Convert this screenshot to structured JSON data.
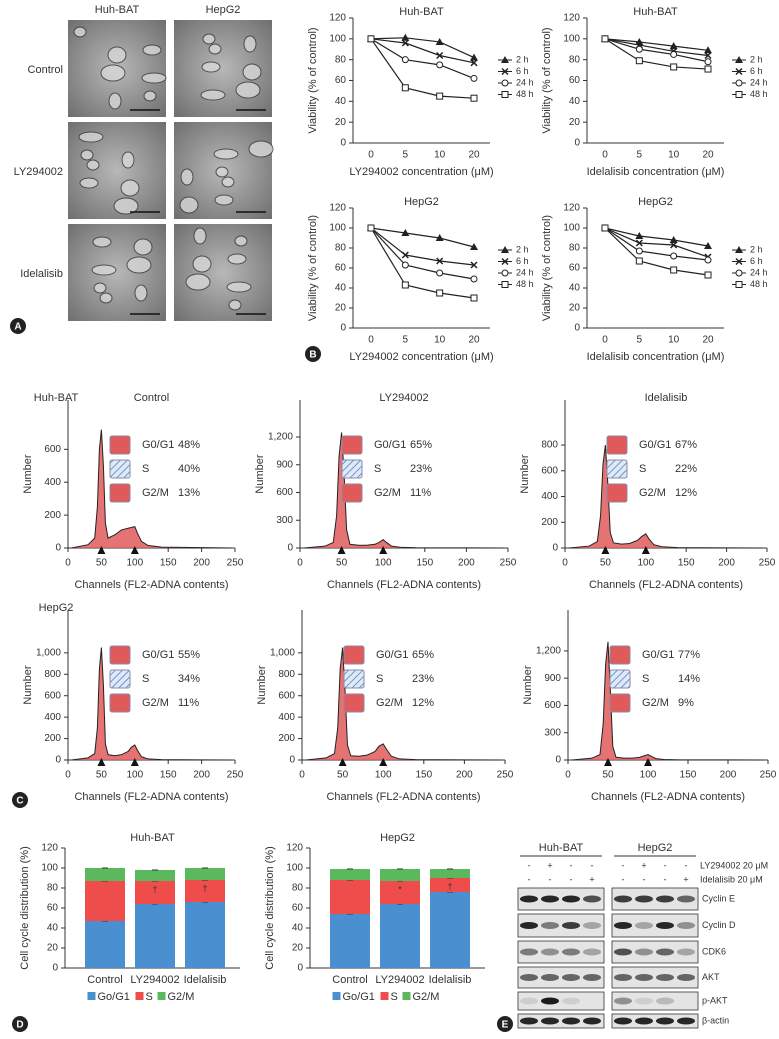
{
  "panel_labels": [
    "A",
    "B",
    "C",
    "D",
    "E"
  ],
  "micrographs": {
    "columns": [
      "Huh-BAT",
      "HepG2"
    ],
    "rows": [
      "Control",
      "LY294002",
      "Idelalisib"
    ]
  },
  "chart_data": [
    {
      "type": "line",
      "title": "Huh-BAT",
      "xlabel": "LY294002 concentration (μM)",
      "ylabel": "Viability (% of control)",
      "categories": [
        "0",
        "5",
        "10",
        "20"
      ],
      "ylim": [
        0,
        120
      ],
      "yticks": [
        0,
        20,
        40,
        60,
        80,
        100,
        120
      ],
      "series": [
        {
          "name": "2 h",
          "color": "#222222",
          "marker": "triangle",
          "values": [
            100,
            101,
            97,
            82
          ]
        },
        {
          "name": "6 h",
          "color": "#222222",
          "marker": "cross",
          "values": [
            100,
            96,
            84,
            77
          ]
        },
        {
          "name": "24 h",
          "color": "#222222",
          "marker": "circle",
          "values": [
            100,
            80,
            75,
            62
          ]
        },
        {
          "name": "48 h",
          "color": "#222222",
          "marker": "square",
          "values": [
            100,
            53,
            45,
            43
          ]
        }
      ]
    },
    {
      "type": "line",
      "title": "Huh-BAT",
      "xlabel": "Idelalisib concentration (μM)",
      "ylabel": "Viability (% of control)",
      "categories": [
        "0",
        "5",
        "10",
        "20"
      ],
      "ylim": [
        0,
        120
      ],
      "yticks": [
        0,
        20,
        40,
        60,
        80,
        100,
        120
      ],
      "series": [
        {
          "name": "2 h",
          "color": "#222222",
          "marker": "triangle",
          "values": [
            100,
            97,
            93,
            89
          ]
        },
        {
          "name": "6 h",
          "color": "#222222",
          "marker": "cross",
          "values": [
            100,
            94,
            88,
            84
          ]
        },
        {
          "name": "24 h",
          "color": "#222222",
          "marker": "circle",
          "values": [
            100,
            90,
            85,
            78
          ]
        },
        {
          "name": "48 h",
          "color": "#222222",
          "marker": "square",
          "values": [
            100,
            79,
            73,
            71
          ]
        }
      ]
    },
    {
      "type": "line",
      "title": "HepG2",
      "xlabel": "LY294002 concentration (μM)",
      "ylabel": "Viability (% of control)",
      "categories": [
        "0",
        "5",
        "10",
        "20"
      ],
      "ylim": [
        0,
        120
      ],
      "yticks": [
        0,
        20,
        40,
        60,
        80,
        100,
        120
      ],
      "series": [
        {
          "name": "2 h",
          "color": "#222222",
          "marker": "triangle",
          "values": [
            100,
            95,
            90,
            81
          ]
        },
        {
          "name": "6 h",
          "color": "#222222",
          "marker": "cross",
          "values": [
            100,
            73,
            67,
            63
          ]
        },
        {
          "name": "24 h",
          "color": "#222222",
          "marker": "circle",
          "values": [
            100,
            63,
            55,
            49
          ]
        },
        {
          "name": "48 h",
          "color": "#222222",
          "marker": "square",
          "values": [
            100,
            43,
            35,
            30
          ]
        }
      ]
    },
    {
      "type": "line",
      "title": "HepG2",
      "xlabel": "Idelalisib concentration (μM)",
      "ylabel": "Viability (% of control)",
      "categories": [
        "0",
        "5",
        "10",
        "20"
      ],
      "ylim": [
        0,
        120
      ],
      "yticks": [
        0,
        20,
        40,
        60,
        80,
        100,
        120
      ],
      "series": [
        {
          "name": "2 h",
          "color": "#222222",
          "marker": "triangle",
          "values": [
            100,
            92,
            88,
            82
          ]
        },
        {
          "name": "6 h",
          "color": "#222222",
          "marker": "cross",
          "values": [
            100,
            85,
            83,
            71
          ]
        },
        {
          "name": "24 h",
          "color": "#222222",
          "marker": "circle",
          "values": [
            100,
            77,
            72,
            68
          ]
        },
        {
          "name": "48 h",
          "color": "#222222",
          "marker": "square",
          "values": [
            100,
            67,
            58,
            53
          ]
        }
      ]
    },
    {
      "type": "area",
      "row_label": "Huh-BAT",
      "title": "Control",
      "xlabel": "Channels (FL2-ADNA contents)",
      "ylabel": "Number",
      "color": "#e05a5a",
      "x": [
        5,
        30,
        40,
        44,
        47,
        50,
        53,
        56,
        60,
        70,
        80,
        90,
        95,
        100,
        104,
        110,
        120,
        140,
        200,
        245
      ],
      "values": [
        0,
        20,
        60,
        250,
        600,
        720,
        500,
        150,
        60,
        80,
        110,
        120,
        125,
        130,
        90,
        40,
        15,
        5,
        2,
        0
      ],
      "xlim": [
        0,
        250
      ],
      "xticks": [
        0,
        50,
        100,
        150,
        200,
        250
      ],
      "ylim": [
        0,
        900
      ],
      "yticks": [
        0,
        200,
        400,
        600
      ],
      "gates": [
        50,
        100
      ],
      "legend": [
        {
          "name": "G0/G1",
          "value": 48,
          "value_label": "48%"
        },
        {
          "name": "S",
          "value": 40,
          "value_label": "40%"
        },
        {
          "name": "G2/M",
          "value": 13,
          "value_label": "13%"
        }
      ]
    },
    {
      "type": "area",
      "title": "LY294002",
      "xlabel": "Channels (FL2-ADNA contents)",
      "ylabel": "Number",
      "color": "#e05a5a",
      "x": [
        5,
        30,
        40,
        44,
        47,
        50,
        53,
        56,
        60,
        70,
        80,
        90,
        95,
        100,
        104,
        110,
        120,
        140,
        200,
        245
      ],
      "values": [
        0,
        20,
        60,
        350,
        1000,
        1250,
        800,
        200,
        40,
        30,
        30,
        40,
        60,
        90,
        60,
        20,
        8,
        3,
        1,
        0
      ],
      "xlim": [
        0,
        250
      ],
      "xticks": [
        0,
        50,
        100,
        150,
        200,
        250
      ],
      "ylim": [
        0,
        1600
      ],
      "yticks": [
        0,
        300,
        600,
        900,
        {
          "value": 1200,
          "label": "1,200"
        }
      ],
      "gates": [
        50,
        100
      ],
      "legend": [
        {
          "name": "G0/G1",
          "value": 65,
          "value_label": "65%"
        },
        {
          "name": "S",
          "value": 23,
          "value_label": "23%"
        },
        {
          "name": "G2/M",
          "value": 11,
          "value_label": "11%"
        }
      ]
    },
    {
      "type": "area",
      "title": "Idelalisib",
      "xlabel": "Channels (FL2-ADNA contents)",
      "ylabel": "Number",
      "color": "#e05a5a",
      "x": [
        5,
        30,
        40,
        44,
        47,
        50,
        53,
        56,
        60,
        70,
        80,
        90,
        95,
        100,
        104,
        110,
        120,
        140,
        200,
        245
      ],
      "values": [
        0,
        15,
        50,
        250,
        650,
        800,
        500,
        120,
        40,
        30,
        35,
        60,
        90,
        110,
        70,
        25,
        10,
        3,
        1,
        0
      ],
      "xlim": [
        0,
        250
      ],
      "xticks": [
        0,
        50,
        100,
        150,
        200,
        250
      ],
      "ylim": [
        0,
        1150
      ],
      "yticks": [
        0,
        200,
        400,
        600,
        800
      ],
      "gates": [
        50,
        100
      ],
      "legend": [
        {
          "name": "G0/G1",
          "value": 67,
          "value_label": "67%"
        },
        {
          "name": "S",
          "value": 22,
          "value_label": "22%"
        },
        {
          "name": "G2/M",
          "value": 12,
          "value_label": "12%"
        }
      ]
    },
    {
      "type": "area",
      "row_label": "HepG2",
      "xlabel": "Channels (FL2-ADNA contents)",
      "ylabel": "Number",
      "color": "#e05a5a",
      "x": [
        5,
        30,
        40,
        44,
        47,
        50,
        53,
        56,
        60,
        70,
        80,
        90,
        95,
        100,
        104,
        110,
        120,
        140,
        200,
        245
      ],
      "values": [
        0,
        20,
        60,
        300,
        850,
        1050,
        700,
        150,
        50,
        40,
        50,
        80,
        120,
        140,
        90,
        30,
        10,
        3,
        1,
        0
      ],
      "xlim": [
        0,
        250
      ],
      "xticks": [
        0,
        50,
        100,
        150,
        200,
        250
      ],
      "ylim": [
        0,
        1400
      ],
      "yticks": [
        0,
        200,
        400,
        600,
        800,
        {
          "value": 1000,
          "label": "1,000"
        }
      ],
      "gates": [
        50,
        100
      ],
      "legend": [
        {
          "name": "G0/G1",
          "value": 55,
          "value_label": "55%"
        },
        {
          "name": "S",
          "value": 34,
          "value_label": "34%"
        },
        {
          "name": "G2/M",
          "value": 11,
          "value_label": "11%"
        }
      ]
    },
    {
      "type": "area",
      "xlabel": "Channels (FL2-ADNA contents)",
      "ylabel": "Number",
      "color": "#e05a5a",
      "x": [
        5,
        30,
        40,
        44,
        47,
        50,
        53,
        56,
        60,
        70,
        80,
        90,
        95,
        100,
        104,
        110,
        120,
        140,
        200,
        245
      ],
      "values": [
        0,
        20,
        60,
        300,
        850,
        1050,
        650,
        140,
        40,
        35,
        45,
        80,
        130,
        150,
        100,
        35,
        10,
        3,
        1,
        0
      ],
      "xlim": [
        0,
        250
      ],
      "xticks": [
        0,
        50,
        100,
        150,
        200,
        250
      ],
      "ylim": [
        0,
        1400
      ],
      "yticks": [
        0,
        200,
        400,
        600,
        800,
        {
          "value": 1000,
          "label": "1,000"
        }
      ],
      "gates": [
        50,
        100
      ],
      "legend": [
        {
          "name": "G0/G1",
          "value": 65,
          "value_label": "65%"
        },
        {
          "name": "S",
          "value": 23,
          "value_label": "23%"
        },
        {
          "name": "G2/M",
          "value": 12,
          "value_label": "12%"
        }
      ]
    },
    {
      "type": "area",
      "xlabel": "Channels (FL2-ADNA contents)",
      "ylabel": "Number",
      "color": "#e05a5a",
      "x": [
        5,
        30,
        40,
        44,
        47,
        50,
        53,
        56,
        60,
        70,
        80,
        90,
        95,
        100,
        104,
        110,
        120,
        140,
        200,
        245
      ],
      "values": [
        0,
        20,
        60,
        400,
        1050,
        1300,
        750,
        150,
        30,
        20,
        20,
        30,
        45,
        60,
        40,
        15,
        5,
        2,
        1,
        0
      ],
      "xlim": [
        0,
        250
      ],
      "xticks": [
        0,
        50,
        100,
        150,
        200,
        250
      ],
      "ylim": [
        0,
        1650
      ],
      "yticks": [
        0,
        300,
        600,
        900,
        {
          "value": 1200,
          "label": "1,200"
        }
      ],
      "gates": [
        50,
        100
      ],
      "legend": [
        {
          "name": "G0/G1",
          "value": 77,
          "value_label": "77%"
        },
        {
          "name": "S",
          "value": 14,
          "value_label": "14%"
        },
        {
          "name": "G2/M",
          "value": 9,
          "value_label": "9%"
        }
      ]
    },
    {
      "type": "stacked_bar",
      "title": "Huh-BAT",
      "ylabel": "Cell cycle distribution (%)",
      "categories": [
        "Control",
        "LY294002",
        "Idelalisib"
      ],
      "ylim": [
        0,
        120
      ],
      "yticks": [
        0,
        20,
        40,
        60,
        80,
        100,
        120
      ],
      "series": [
        {
          "name": "Go/G1",
          "color": "#4a90d0",
          "values": [
            47,
            64,
            66
          ]
        },
        {
          "name": "S",
          "color": "#ef4c4c",
          "values": [
            40,
            23,
            22
          ]
        },
        {
          "name": "G2/M",
          "color": "#5cb85c",
          "values": [
            13,
            11,
            12
          ]
        }
      ],
      "annotations": [
        {
          "text": "†",
          "category": 1
        },
        {
          "text": "†",
          "category": 2
        }
      ]
    },
    {
      "type": "stacked_bar",
      "title": "HepG2",
      "ylabel": "Cell cycle distribution (%)",
      "categories": [
        "Control",
        "LY294002",
        "Idelalisib"
      ],
      "ylim": [
        0,
        120
      ],
      "yticks": [
        0,
        20,
        40,
        60,
        80,
        100,
        120
      ],
      "series": [
        {
          "name": "Go/G1",
          "color": "#4a90d0",
          "values": [
            54,
            64,
            76
          ]
        },
        {
          "name": "S",
          "color": "#ef4c4c",
          "values": [
            34,
            23,
            14
          ]
        },
        {
          "name": "G2/M",
          "color": "#5cb85c",
          "values": [
            11,
            12,
            9
          ]
        }
      ],
      "annotations": [
        {
          "text": "*",
          "category": 1
        },
        {
          "text": "†",
          "category": 2
        }
      ]
    }
  ],
  "western_blot": {
    "groups": [
      "Huh-BAT",
      "HepG2"
    ],
    "treatments": [
      {
        "label": "LY294002 20 μM",
        "signs": [
          "-",
          "+",
          "-",
          "-",
          "-",
          "+",
          "-",
          "-"
        ]
      },
      {
        "label": "Idelalisib 20 μM",
        "signs": [
          "-",
          "-",
          "-",
          "+",
          "-",
          "-",
          "-",
          "+"
        ]
      }
    ],
    "proteins": [
      "Cyclin E",
      "Cyclin D",
      "CDK6",
      "AKT",
      "p-AKT",
      "β-actin"
    ]
  }
}
